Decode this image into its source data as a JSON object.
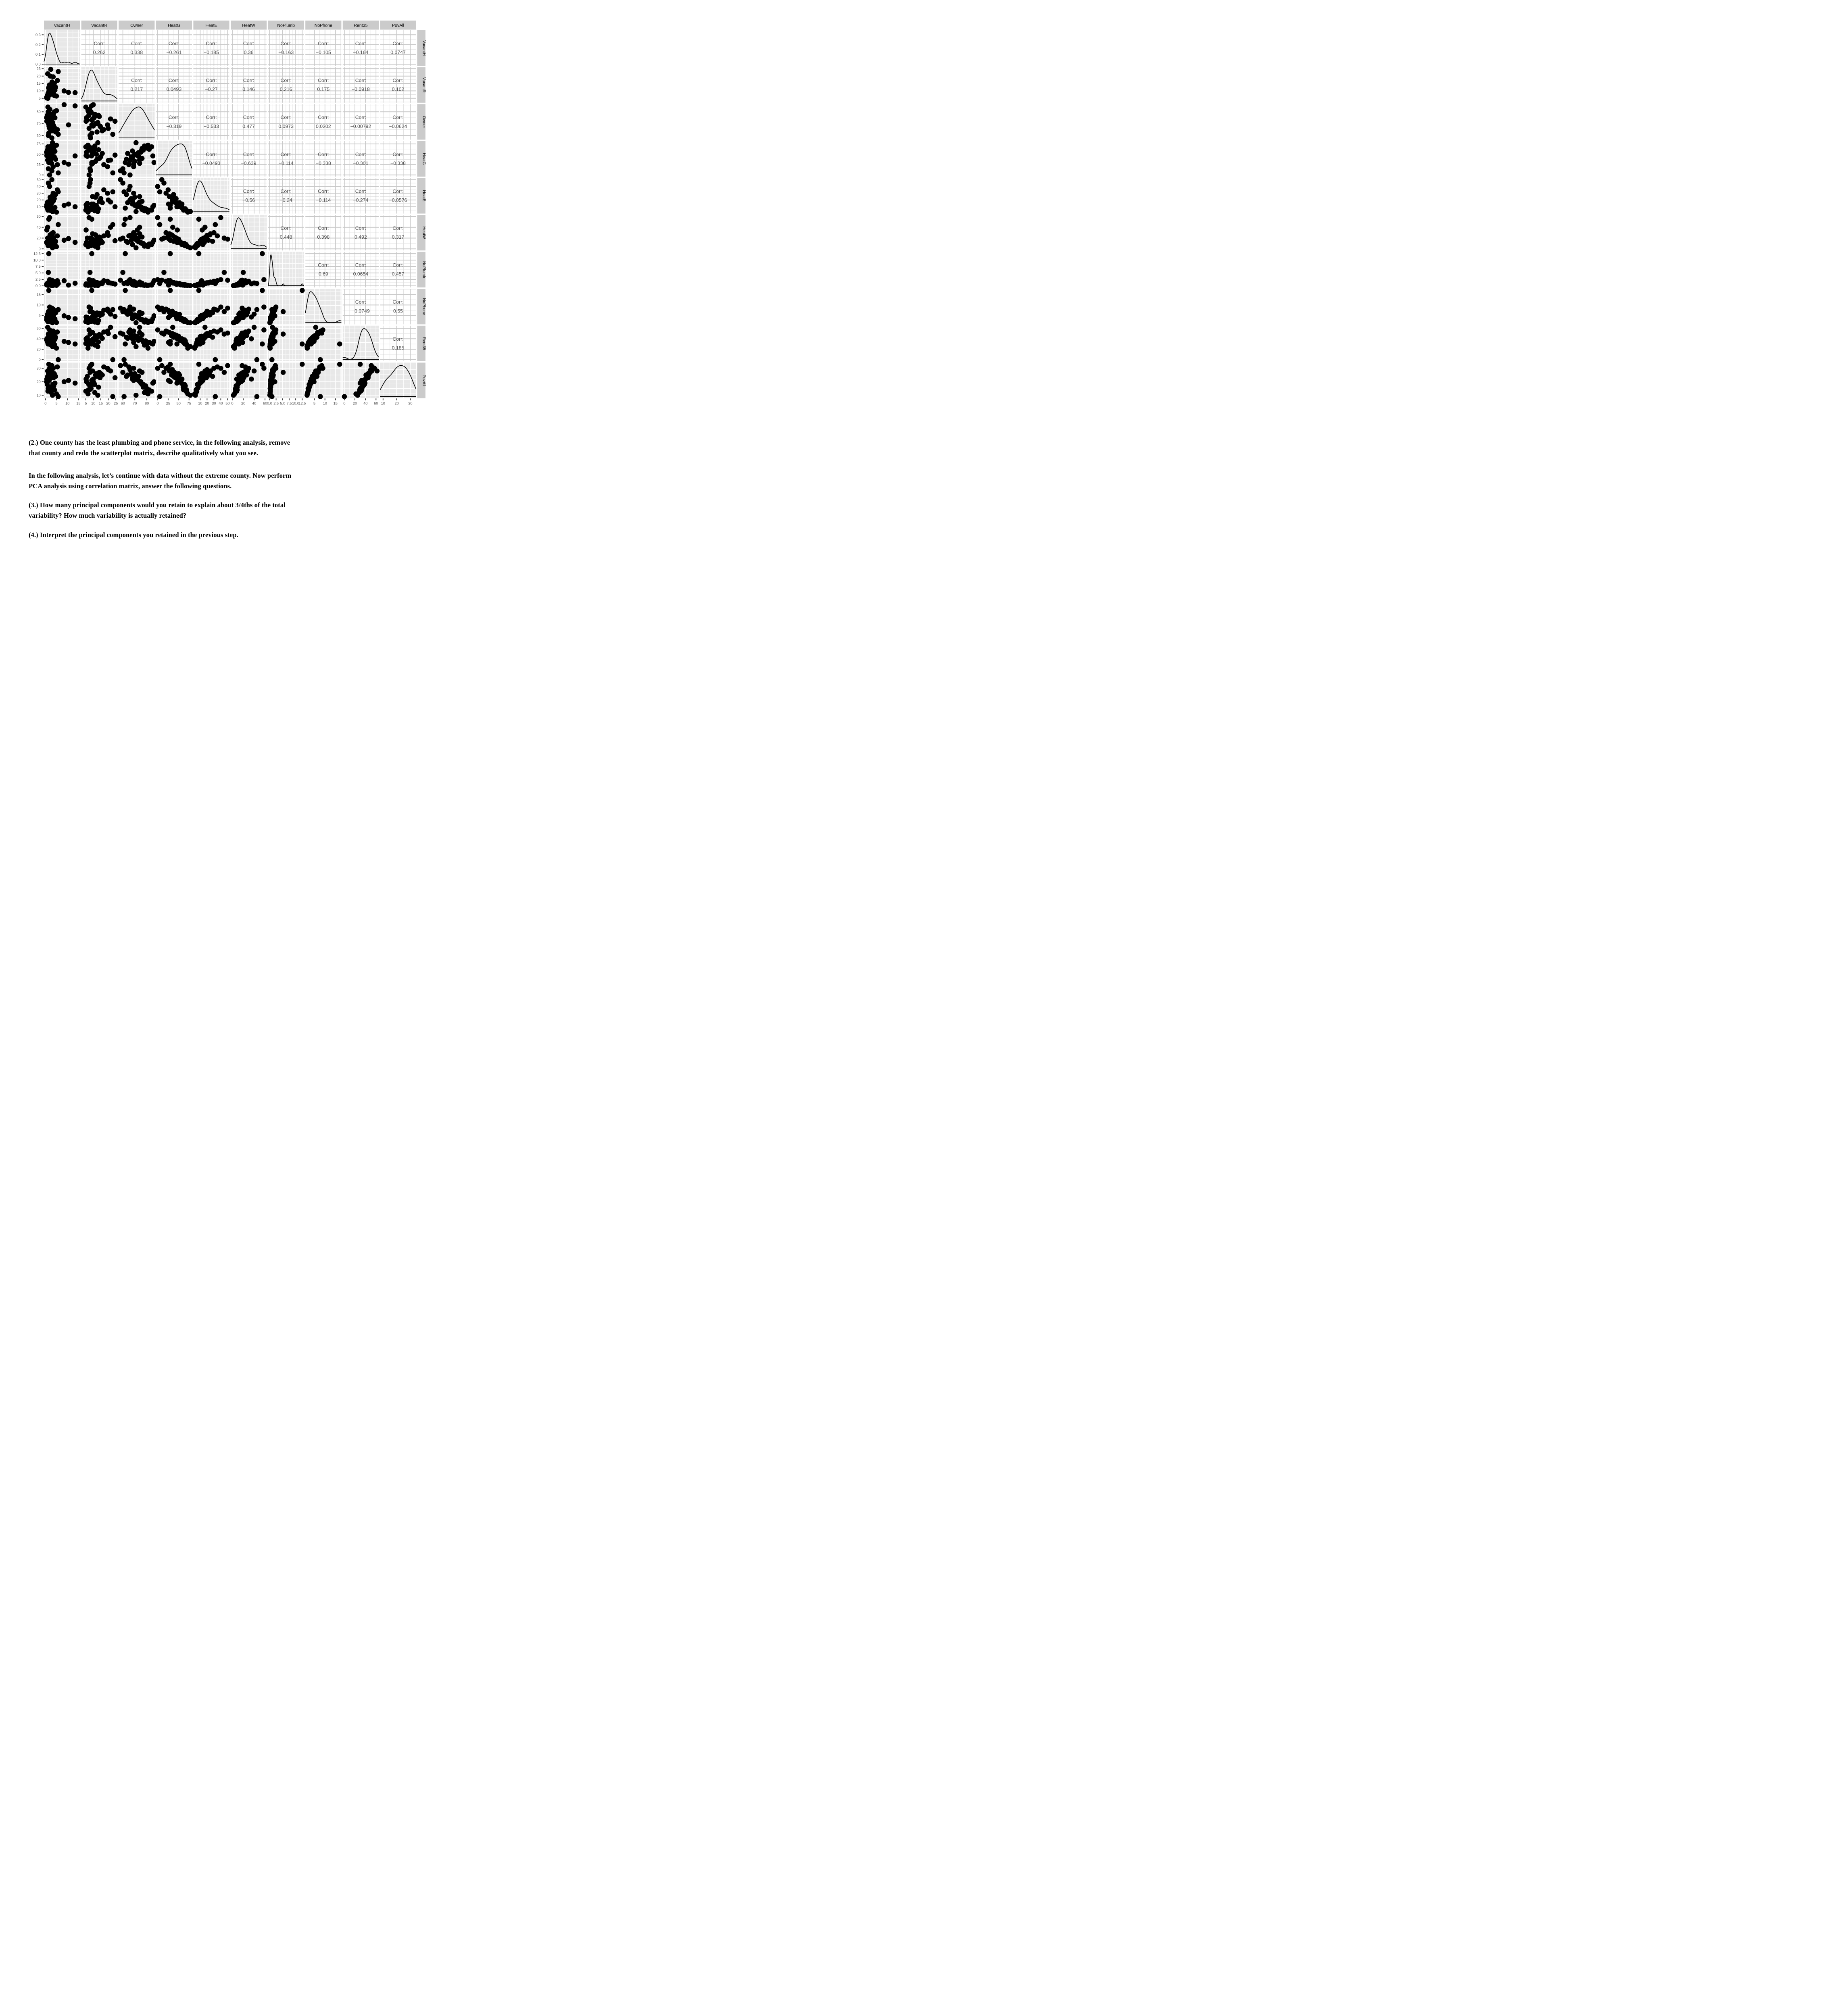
{
  "page": {
    "background": "#ffffff"
  },
  "chart_data": {
    "type": "scatter",
    "subtype": "scatterplot-matrix-ggpairs",
    "title": "",
    "legend": "none",
    "grid": "on",
    "corr_label": "Corr:",
    "layout": {
      "diagonal": "density",
      "upper_triangle": "correlation-values",
      "lower_triangle": "scatterplots"
    },
    "variables": [
      {
        "key": "VacantH",
        "label": "VacantH",
        "domain": [
          -0.7,
          15.7
        ],
        "ticks": [
          0,
          5,
          10,
          15
        ],
        "tick_labels": [
          "0",
          "5",
          "10",
          "15"
        ]
      },
      {
        "key": "VacantR",
        "label": "VacantR",
        "domain": [
          2,
          26
        ],
        "ticks": [
          5,
          10,
          15,
          20,
          25
        ],
        "tick_labels": [
          "5",
          "10",
          "15",
          "20",
          "25"
        ]
      },
      {
        "key": "Owner",
        "label": "Owner",
        "domain": [
          56.5,
          86.5
        ],
        "ticks": [
          60,
          70,
          80
        ],
        "tick_labels": [
          "60",
          "70",
          "80"
        ]
      },
      {
        "key": "HeatG",
        "label": "HeatG",
        "domain": [
          -4,
          82
        ],
        "ticks": [
          0,
          25,
          50,
          75
        ],
        "tick_labels": [
          "0",
          "25",
          "50",
          "75"
        ]
      },
      {
        "key": "HeatE",
        "label": "HeatE",
        "domain": [
          0,
          52.5
        ],
        "ticks": [
          10,
          20,
          30,
          40,
          50
        ],
        "tick_labels": [
          "10",
          "20",
          "30",
          "40",
          "50"
        ]
      },
      {
        "key": "HeatW",
        "label": "HeatW",
        "domain": [
          -3,
          63
        ],
        "ticks": [
          0,
          20,
          40,
          60
        ],
        "tick_labels": [
          "0",
          "20",
          "40",
          "60"
        ]
      },
      {
        "key": "NoPlumb",
        "label": "NoPlumb",
        "domain": [
          -0.6,
          13.2
        ],
        "ticks": [
          0,
          2.5,
          5,
          7.5,
          10,
          12.5
        ],
        "tick_labels": [
          "0.0",
          "2.5",
          "5.0",
          "7.5",
          "10.0",
          "12.5"
        ]
      },
      {
        "key": "NoPhone",
        "label": "NoPhone",
        "domain": [
          0.7,
          17.8
        ],
        "ticks": [
          5,
          10,
          15
        ],
        "tick_labels": [
          "5",
          "10",
          "15"
        ]
      },
      {
        "key": "Rent35",
        "label": "Rent35",
        "domain": [
          -3.1,
          65.1
        ],
        "ticks": [
          0,
          20,
          40,
          60
        ],
        "tick_labels": [
          "0",
          "20",
          "40",
          "60"
        ]
      },
      {
        "key": "PovAll",
        "label": "PovAll",
        "domain": [
          7.8,
          34.2
        ],
        "ticks": [
          10,
          20,
          30
        ],
        "tick_labels": [
          "10",
          "20",
          "30"
        ]
      }
    ],
    "density_axis": {
      "domain": [
        -0.0165,
        0.3465
      ],
      "ticks": [
        0,
        0.1,
        0.2,
        0.3
      ],
      "tick_labels": [
        "0.0",
        "0.1",
        "0.2",
        "0.3"
      ]
    },
    "correlations": [
      [
        "0.262",
        "0.338",
        "−0.261",
        "−0.185",
        "0.36",
        "−0.163",
        "−0.105",
        "−0.164",
        "0.0747"
      ],
      [
        "0.217",
        "0.0493",
        "−0.27",
        "0.146",
        "0.216",
        "0.175",
        "−0.0918",
        "0.102"
      ],
      [
        "−0.319",
        "−0.533",
        "0.477",
        "0.0973",
        "0.0202",
        "−0.00792",
        "−0.0624"
      ],
      [
        "−0.0493",
        "−0.639",
        "−0.114",
        "−0.338",
        "−0.301",
        "−0.338"
      ],
      [
        "−0.56",
        "−0.24",
        "−0.114",
        "−0.274",
        "−0.0576"
      ],
      [
        "0.448",
        "0.398",
        "0.492",
        "0.317"
      ],
      [
        "0.69",
        "0.0654",
        "0.457"
      ],
      [
        "−0.0749",
        "0.55"
      ],
      [
        "0.185"
      ]
    ],
    "points_columns": [
      "VacantH",
      "VacantR",
      "Owner",
      "HeatG",
      "HeatE",
      "HeatW",
      "NoPlumb",
      "NoPhone",
      "Rent35",
      "PovAll"
    ],
    "points": [
      [
        1.5,
        9.0,
        62,
        30,
        8,
        55,
        12.5,
        17.0,
        30,
        33
      ],
      [
        0.5,
        5.5,
        75,
        55,
        10,
        12,
        0.4,
        3.0,
        38,
        20
      ],
      [
        0.8,
        7.0,
        77,
        60,
        8,
        10,
        0.3,
        2.5,
        35,
        18
      ],
      [
        1.0,
        6.0,
        73,
        45,
        15,
        20,
        0.6,
        4.0,
        42,
        24
      ],
      [
        1.2,
        8.5,
        80,
        65,
        6,
        6,
        0.2,
        2.0,
        30,
        15
      ],
      [
        1.4,
        12.0,
        70,
        50,
        12,
        18,
        0.8,
        5.0,
        45,
        26
      ],
      [
        1.6,
        10.0,
        68,
        58,
        14,
        8,
        0.5,
        3.5,
        40,
        22
      ],
      [
        1.8,
        14.0,
        76,
        40,
        18,
        22,
        1.0,
        6.0,
        48,
        27
      ],
      [
        2.0,
        7.5,
        82,
        62,
        5,
        9,
        0.3,
        2.2,
        33,
        14
      ],
      [
        2.2,
        20.0,
        66,
        35,
        20,
        25,
        1.2,
        7.0,
        50,
        29
      ],
      [
        2.4,
        24.5,
        72,
        48,
        10,
        15,
        0.7,
        4.5,
        44,
        23
      ],
      [
        2.6,
        11.0,
        78,
        70,
        4,
        5,
        0.2,
        1.8,
        28,
        12
      ],
      [
        2.8,
        9.5,
        74,
        28,
        25,
        28,
        1.5,
        6.5,
        52,
        28
      ],
      [
        3.0,
        16.0,
        64,
        52,
        16,
        12,
        0.9,
        5.5,
        41,
        25
      ],
      [
        3.2,
        13.0,
        71,
        78,
        3,
        2,
        0.1,
        1.5,
        25,
        10
      ],
      [
        3.5,
        19.5,
        69,
        20,
        30,
        30,
        1.8,
        8.0,
        55,
        30
      ],
      [
        3.8,
        8.0,
        79,
        66,
        7,
        7,
        0.4,
        2.8,
        36,
        17
      ],
      [
        4.0,
        15.0,
        67,
        44,
        22,
        16,
        1.1,
        5.8,
        47,
        26
      ],
      [
        4.3,
        10.5,
        75,
        57,
        9,
        11,
        0.6,
        3.2,
        39,
        19
      ],
      [
        4.6,
        12.5,
        63,
        38,
        28,
        14,
        1.3,
        6.2,
        43,
        24
      ],
      [
        5.0,
        6.5,
        81,
        72,
        2,
        4,
        0.2,
        1.6,
        22,
        11
      ],
      [
        5.4,
        17.0,
        65,
        25,
        35,
        24,
        2.0,
        7.5,
        53,
        31
      ],
      [
        1.1,
        5.0,
        84,
        68,
        5,
        8,
        0.3,
        2.0,
        31,
        13
      ],
      [
        1.3,
        7.8,
        60,
        15,
        45,
        20,
        5.2,
        6.8,
        49,
        27
      ],
      [
        1.7,
        9.2,
        73,
        54,
        11,
        13,
        0.7,
        3.8,
        37,
        21
      ],
      [
        2.1,
        11.5,
        70,
        33,
        24,
        26,
        1.4,
        5.2,
        46,
        25
      ],
      [
        2.5,
        13.5,
        77,
        61,
        7,
        9,
        0.4,
        2.6,
        34,
        16
      ],
      [
        2.9,
        8.2,
        58,
        10,
        50,
        18,
        2.2,
        8.5,
        51,
        32
      ],
      [
        3.3,
        10.8,
        76,
        64,
        6,
        10,
        0.5,
        3.0,
        38,
        18
      ],
      [
        3.7,
        14.5,
        68,
        42,
        19,
        21,
        1.0,
        5.0,
        45,
        23
      ],
      [
        4.1,
        6.8,
        80,
        69,
        4,
        6,
        0.3,
        2.1,
        29,
        14
      ],
      [
        0.6,
        5.2,
        72,
        47,
        13,
        35,
        0.8,
        4.2,
        40,
        22
      ],
      [
        1.0,
        21.5,
        74,
        36,
        17,
        40,
        1.1,
        5.6,
        62,
        28
      ],
      [
        1.9,
        7.2,
        66,
        0,
        40,
        58,
        2.4,
        9.0,
        57,
        30
      ],
      [
        8.5,
        10.0,
        86,
        30,
        12,
        16,
        2.0,
        4.8,
        35,
        20
      ],
      [
        10.5,
        9.0,
        69,
        26,
        14,
        19,
        0.3,
        4.0,
        33,
        21
      ],
      [
        13.5,
        8.8,
        85,
        46,
        10,
        12,
        1.0,
        3.4,
        30,
        19
      ],
      [
        5.8,
        23.0,
        61,
        5,
        32,
        45,
        0.9,
        7.8,
        0,
        9
      ]
    ]
  },
  "style": {
    "strip_bg": "#cbcbcb",
    "strip_text": "#000000",
    "panel_bg": "#e8e8e8",
    "grid_white": "#ffffff",
    "corr_grid_major": "#c9c9c9",
    "corr_grid_minor": "#e1e1e1",
    "tick_mark": "#333333",
    "tick_text": "#4d4d4d",
    "corr_text": "#4a4a4a",
    "point_color": "#000000",
    "density_color": "#000000"
  },
  "text": {
    "q2": "(2.) One county has the least plumbing and phone service, in the following analysis, remove\nthat county and redo the scatterplot matrix, describe qualitatively what you see.",
    "intro": "In the following analysis, let’s continue with data without the extreme county. Now perform\nPCA analysis using correlation matrix, answer the following questions.",
    "q3": "(3.) How many principal components would you retain to explain about 3/4ths of the total\nvariability? How much variability is actually retained?",
    "q4": "(4.) Interpret the principal components you retained in the previous step."
  }
}
